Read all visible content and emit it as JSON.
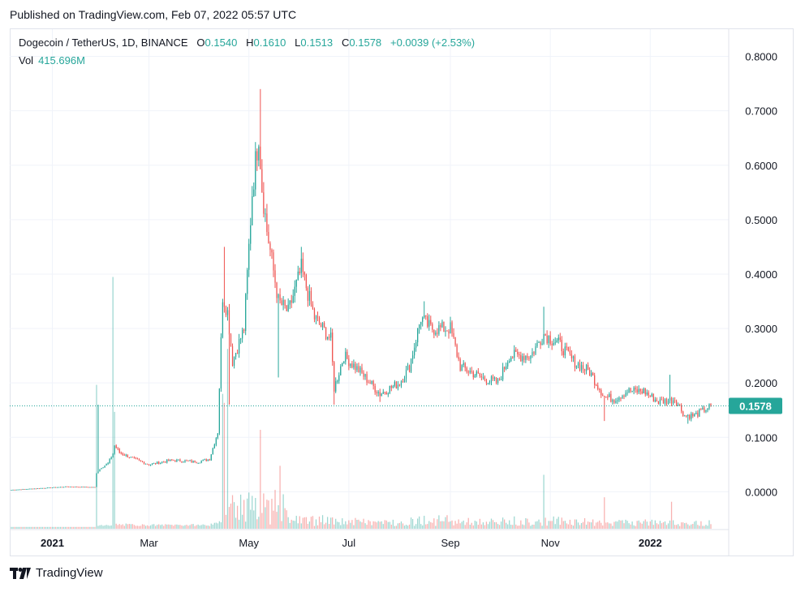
{
  "published": "Published on TradingView.com, Feb 07, 2022 05:57 UTC",
  "legend": {
    "symbol": "Dogecoin / TetherUS, 1D, BINANCE",
    "o_label": "O",
    "o": "0.1540",
    "h_label": "H",
    "h": "0.1610",
    "l_label": "L",
    "l": "0.1513",
    "c_label": "C",
    "c": "0.1578",
    "change": "+0.0039 (+2.53%)",
    "vol_label": "Vol",
    "vol": "415.696M"
  },
  "footer": {
    "brand": "TradingView",
    "logo_icon": "tradingview-logo-icon"
  },
  "colors": {
    "up": "#26a69a",
    "down": "#ef5350",
    "grid": "#f0f3fa",
    "axis_text": "#131722",
    "last_price_bg": "#26a69a"
  },
  "chart_data": {
    "type": "candlestick",
    "y_ticks": [
      "0.8000",
      "0.7000",
      "0.6000",
      "0.5000",
      "0.4000",
      "0.3000",
      "0.2000",
      "0.1000",
      "0.0000"
    ],
    "ylim": [
      -0.068,
      0.85
    ],
    "x_ticks": [
      "2021",
      "Mar",
      "May",
      "Jul",
      "Sep",
      "Nov",
      "2022"
    ],
    "last_price": "0.1578",
    "last_price_value": 0.1578,
    "start_date": "2020-12-07",
    "end_date": "2022-02-07",
    "price_anchors": [
      [
        "2020-12-07",
        0.0035
      ],
      [
        "2021-01-10",
        0.0095
      ],
      [
        "2021-01-27",
        0.0085
      ],
      [
        "2021-01-28",
        0.035
      ],
      [
        "2021-01-31",
        0.045
      ],
      [
        "2021-02-04",
        0.052
      ],
      [
        "2021-02-07",
        0.07
      ],
      [
        "2021-02-08",
        0.085
      ],
      [
        "2021-02-11",
        0.072
      ],
      [
        "2021-02-20",
        0.06
      ],
      [
        "2021-03-01",
        0.05
      ],
      [
        "2021-03-15",
        0.058
      ],
      [
        "2021-03-31",
        0.055
      ],
      [
        "2021-04-07",
        0.06
      ],
      [
        "2021-04-12",
        0.11
      ],
      [
        "2021-04-15",
        0.36
      ],
      [
        "2021-04-18",
        0.33
      ],
      [
        "2021-04-21",
        0.24
      ],
      [
        "2021-04-28",
        0.3
      ],
      [
        "2021-05-03",
        0.55
      ],
      [
        "2021-05-07",
        0.66
      ],
      [
        "2021-05-09",
        0.56
      ],
      [
        "2021-05-12",
        0.48
      ],
      [
        "2021-05-19",
        0.35
      ],
      [
        "2021-05-25",
        0.33
      ],
      [
        "2021-06-02",
        0.41
      ],
      [
        "2021-06-10",
        0.32
      ],
      [
        "2021-06-20",
        0.28
      ],
      [
        "2021-06-22",
        0.19
      ],
      [
        "2021-06-28",
        0.25
      ],
      [
        "2021-07-08",
        0.22
      ],
      [
        "2021-07-20",
        0.18
      ],
      [
        "2021-08-01",
        0.2
      ],
      [
        "2021-08-07",
        0.23
      ],
      [
        "2021-08-14",
        0.32
      ],
      [
        "2021-08-20",
        0.3
      ],
      [
        "2021-09-01",
        0.3
      ],
      [
        "2021-09-07",
        0.23
      ],
      [
        "2021-09-20",
        0.21
      ],
      [
        "2021-09-30",
        0.2
      ],
      [
        "2021-10-07",
        0.25
      ],
      [
        "2021-10-20",
        0.25
      ],
      [
        "2021-10-28",
        0.29
      ],
      [
        "2021-11-07",
        0.27
      ],
      [
        "2021-11-15",
        0.24
      ],
      [
        "2021-11-25",
        0.22
      ],
      [
        "2021-12-04",
        0.175
      ],
      [
        "2021-12-10",
        0.17
      ],
      [
        "2021-12-18",
        0.185
      ],
      [
        "2021-12-28",
        0.185
      ],
      [
        "2022-01-06",
        0.165
      ],
      [
        "2022-01-16",
        0.17
      ],
      [
        "2022-01-22",
        0.14
      ],
      [
        "2022-01-28",
        0.14
      ],
      [
        "2022-02-07",
        0.1578
      ]
    ],
    "extreme_wicks": [
      [
        "2021-01-29",
        0.16
      ],
      [
        "2021-04-16",
        0.45
      ],
      [
        "2021-04-19",
        0.16
      ],
      [
        "2021-05-08",
        0.74
      ],
      [
        "2021-05-19",
        0.21
      ],
      [
        "2021-06-02",
        0.45
      ],
      [
        "2021-06-22",
        0.16
      ],
      [
        "2021-07-20",
        0.165
      ],
      [
        "2021-08-16",
        0.35
      ],
      [
        "2021-10-28",
        0.34
      ],
      [
        "2021-12-04",
        0.13
      ],
      [
        "2022-01-13",
        0.215
      ],
      [
        "2022-01-24",
        0.125
      ]
    ],
    "volume_spikes": [
      [
        "2021-01-28",
        0.32
      ],
      [
        "2021-02-07",
        0.56
      ],
      [
        "2021-02-08",
        0.26
      ],
      [
        "2021-04-15",
        0.3
      ],
      [
        "2021-04-16",
        0.28
      ],
      [
        "2021-04-18",
        0.4
      ],
      [
        "2021-05-08",
        0.22
      ],
      [
        "2021-05-20",
        0.14
      ],
      [
        "2021-10-28",
        0.12
      ],
      [
        "2021-12-04",
        0.07
      ],
      [
        "2022-01-14",
        0.06
      ]
    ]
  }
}
